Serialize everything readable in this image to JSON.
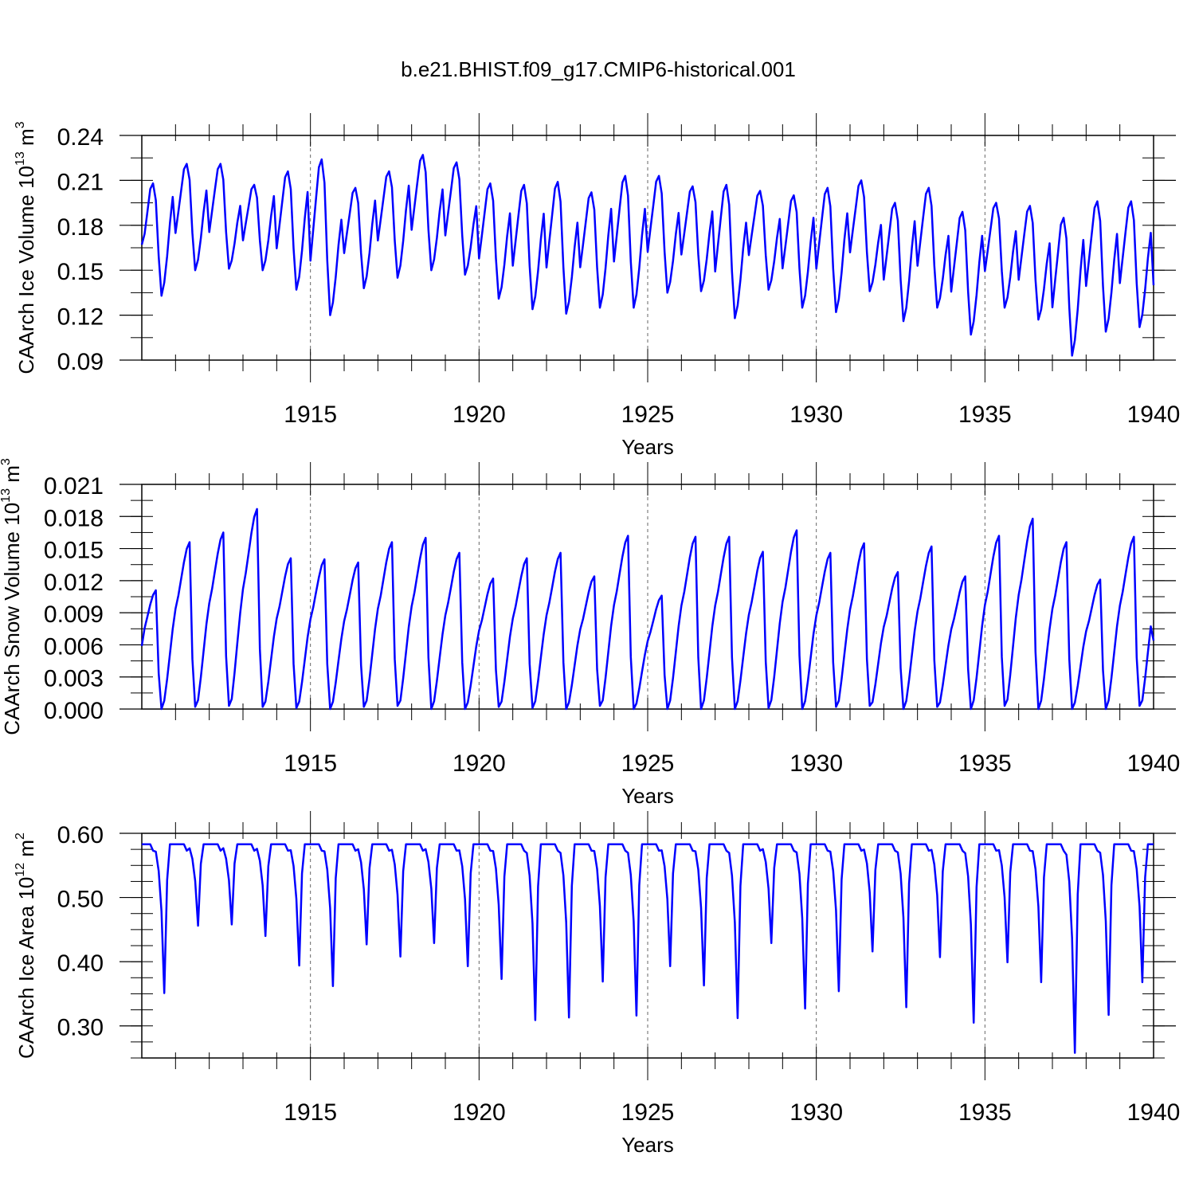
{
  "figure": {
    "title": "b.e21.BHIST.f09_g17.CMIP6-historical.001"
  },
  "chart_data": [
    {
      "type": "line",
      "id": "ice-volume",
      "ylabel": "CAArch Ice Volume 10",
      "ylabel_exp": "13",
      "ylabel_unit": " m",
      "ylabel_unit_exp": "3",
      "xlabel": "Years",
      "xlim": [
        1910,
        1940
      ],
      "ylim": [
        0.09,
        0.24
      ],
      "yticks": [
        0.09,
        0.12,
        0.15,
        0.18,
        0.21,
        0.24
      ],
      "ytick_labels": [
        "0.09",
        "0.12",
        "0.15",
        "0.18",
        "0.21",
        "0.24"
      ],
      "y_minor_step": 0.015,
      "xticks": [
        1915,
        1920,
        1925,
        1930,
        1935,
        1940
      ],
      "xtick_labels": [
        "1915",
        "1920",
        "1925",
        "1930",
        "1935",
        "1940"
      ],
      "gridlines_x": [
        1915,
        1920,
        1925,
        1930,
        1935
      ],
      "series_color": "#0000ff",
      "monthly_start": 1910.0,
      "year_peaks": [
        0.208,
        0.221,
        0.221,
        0.207,
        0.216,
        0.224,
        0.205,
        0.216,
        0.227,
        0.222,
        0.208,
        0.207,
        0.209,
        0.202,
        0.213,
        0.213,
        0.206,
        0.207,
        0.203,
        0.2,
        0.205,
        0.21,
        0.195,
        0.205,
        0.189,
        0.195,
        0.193,
        0.185,
        0.196,
        0.196
      ],
      "year_troughs": [
        0.133,
        0.15,
        0.151,
        0.15,
        0.137,
        0.12,
        0.138,
        0.145,
        0.15,
        0.147,
        0.131,
        0.124,
        0.121,
        0.125,
        0.125,
        0.135,
        0.136,
        0.118,
        0.137,
        0.125,
        0.122,
        0.136,
        0.116,
        0.125,
        0.107,
        0.125,
        0.117,
        0.093,
        0.109,
        0.112
      ],
      "start_value": 0.167,
      "end_value": 0.14
    },
    {
      "type": "line",
      "id": "snow-volume",
      "ylabel": "CAArch Snow Volume 10",
      "ylabel_exp": "13",
      "ylabel_unit": " m",
      "ylabel_unit_exp": "3",
      "xlabel": "Years",
      "xlim": [
        1910,
        1940
      ],
      "ylim": [
        0.0,
        0.021
      ],
      "yticks": [
        0.0,
        0.003,
        0.006,
        0.009,
        0.012,
        0.015,
        0.018,
        0.021
      ],
      "ytick_labels": [
        "0.000",
        "0.003",
        "0.006",
        "0.009",
        "0.012",
        "0.015",
        "0.018",
        "0.021"
      ],
      "y_minor_step": 0.0015,
      "xticks": [
        1915,
        1920,
        1925,
        1930,
        1935,
        1940
      ],
      "xtick_labels": [
        "1915",
        "1920",
        "1925",
        "1930",
        "1935",
        "1940"
      ],
      "gridlines_x": [
        1915,
        1920,
        1925,
        1930,
        1935
      ],
      "series_color": "#0000ff",
      "monthly_start": 1910.0,
      "year_peaks": [
        0.0111,
        0.0156,
        0.0165,
        0.0187,
        0.0141,
        0.014,
        0.0137,
        0.0156,
        0.016,
        0.0146,
        0.0122,
        0.0141,
        0.0146,
        0.0124,
        0.0162,
        0.0106,
        0.0161,
        0.0161,
        0.0147,
        0.0167,
        0.0146,
        0.0155,
        0.0128,
        0.0152,
        0.0124,
        0.0162,
        0.0178,
        0.0156,
        0.0121,
        0.0161
      ],
      "year_troughs": [
        0.0,
        0.0002,
        0.0003,
        0.0002,
        0.0001,
        0.0,
        0.0002,
        0.0003,
        0.0,
        0.0,
        0.0002,
        0.0001,
        0.0,
        0.0003,
        0.0,
        0.0,
        0.0,
        0.0,
        0.0001,
        0.0,
        0.0002,
        0.0003,
        0.0,
        0.0002,
        0.0,
        0.0003,
        0.0,
        0.0,
        0.0,
        0.0003
      ],
      "start_value": 0.0059,
      "end_value": 0.0064
    },
    {
      "type": "line",
      "id": "ice-area",
      "ylabel": "CAArch Ice Area 10",
      "ylabel_exp": "12",
      "ylabel_unit": " m",
      "ylabel_unit_exp": "2",
      "xlabel": "Years",
      "xlim": [
        1910,
        1940
      ],
      "ylim": [
        0.25,
        0.6
      ],
      "yticks": [
        0.3,
        0.4,
        0.5,
        0.6
      ],
      "ytick_labels": [
        "0.30",
        "0.40",
        "0.50",
        "0.60"
      ],
      "y_minor_step": 0.025,
      "xticks": [
        1915,
        1920,
        1925,
        1930,
        1935,
        1940
      ],
      "xtick_labels": [
        "1915",
        "1920",
        "1925",
        "1930",
        "1935",
        "1940"
      ],
      "gridlines_x": [
        1915,
        1920,
        1925,
        1930,
        1935
      ],
      "series_color": "#0000ff",
      "monthly_start": 1910.0,
      "plateau_value": 0.583,
      "year_minima": [
        0.351,
        0.456,
        0.458,
        0.44,
        0.394,
        0.362,
        0.427,
        0.408,
        0.429,
        0.393,
        0.373,
        0.309,
        0.313,
        0.369,
        0.316,
        0.393,
        0.363,
        0.312,
        0.429,
        0.327,
        0.354,
        0.416,
        0.329,
        0.407,
        0.305,
        0.399,
        0.368,
        0.258,
        0.317,
        0.368
      ],
      "start_value": 0.583,
      "end_value": 0.583
    }
  ]
}
